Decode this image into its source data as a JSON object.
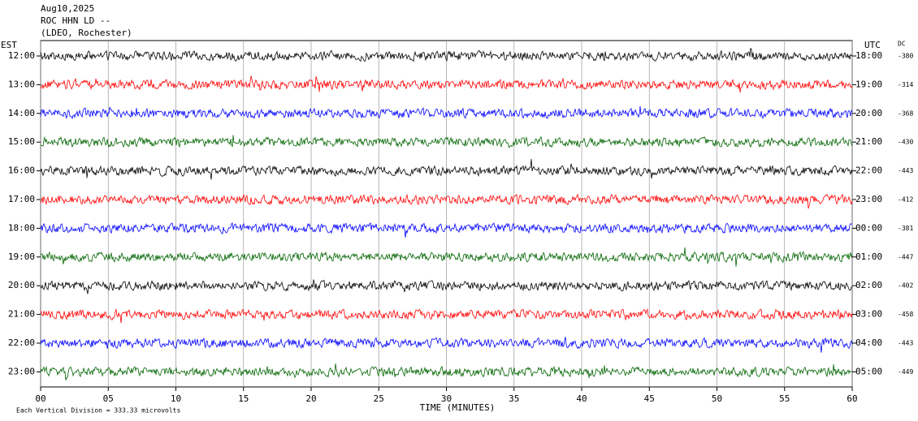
{
  "chart_data": {
    "type": "helicorder",
    "title_lines": [
      "Aug10,2025",
      "ROC HHN LD --",
      "(LDEO, Rochester)"
    ],
    "left_axis_title": "EST",
    "right_axis_title": "UTC",
    "dc_title": "DC",
    "rows": {
      "est": [
        "12:00",
        "13:00",
        "14:00",
        "15:00",
        "16:00",
        "17:00",
        "18:00",
        "19:00",
        "20:00",
        "21:00",
        "22:00",
        "23:00"
      ],
      "utc": [
        "18:00",
        "19:00",
        "20:00",
        "21:00",
        "22:00",
        "23:00",
        "00:00",
        "01:00",
        "02:00",
        "03:00",
        "04:00",
        "05:00"
      ],
      "dc": [
        -380,
        -314,
        -368,
        -430,
        -443,
        -412,
        -381,
        -447,
        -402,
        -458,
        -443,
        -449
      ],
      "colors": [
        "#000000",
        "#ff0000",
        "#0000ff",
        "#006400",
        "#000000",
        "#ff0000",
        "#0000ff",
        "#006400",
        "#000000",
        "#ff0000",
        "#0000ff",
        "#006400"
      ]
    },
    "xlabel": "TIME (MINUTES)",
    "xlim": [
      0,
      60
    ],
    "xticks": [
      {
        "value": 0,
        "label": "00"
      },
      {
        "value": 5,
        "label": "05"
      },
      10,
      15,
      20,
      25,
      30,
      35,
      40,
      45,
      50,
      55,
      60
    ],
    "footnote": "Each Vertical Division =  333.33 microvolts",
    "grid": true
  }
}
